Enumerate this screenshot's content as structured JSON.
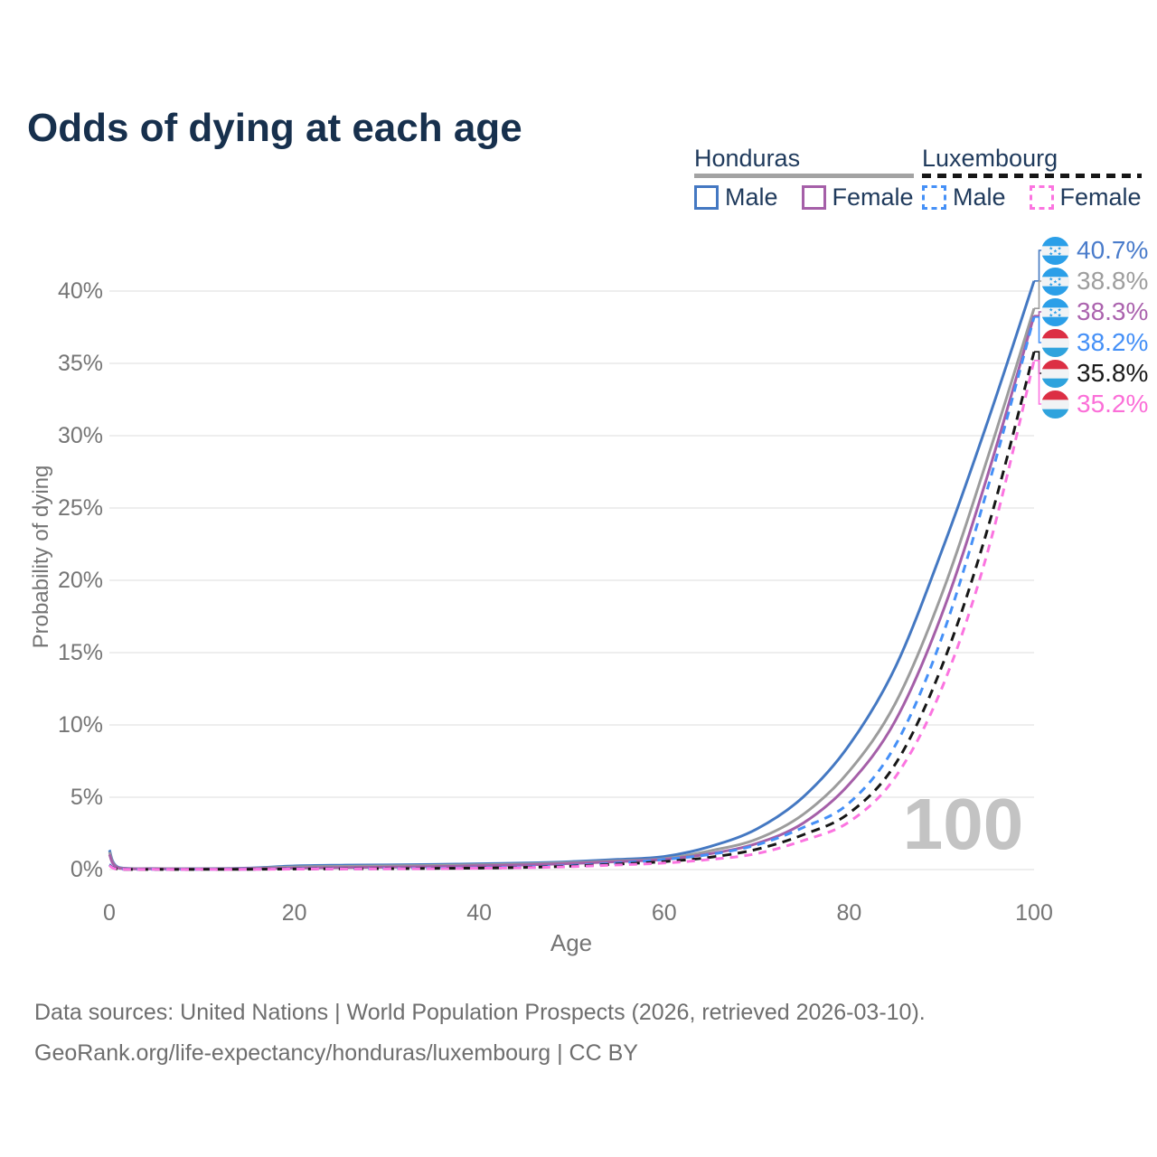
{
  "title": "Odds of dying at each age",
  "legend": {
    "groups": [
      {
        "id": "honduras",
        "label": "Honduras",
        "underline_style": "solid",
        "underline_color": "#a3a3a3",
        "items": [
          {
            "label": "Male",
            "color": "#4478c2",
            "style": "solid"
          },
          {
            "label": "Female",
            "color": "#a55fa8",
            "style": "solid"
          }
        ]
      },
      {
        "id": "luxembourg",
        "label": "Luxembourg",
        "underline_style": "dashed",
        "underline_color": "#161616",
        "items": [
          {
            "label": "Male",
            "color": "#4590f7",
            "style": "dashed"
          },
          {
            "label": "Female",
            "color": "#fb74e0",
            "style": "dashed"
          }
        ]
      }
    ]
  },
  "chart_data": {
    "type": "line",
    "title": "Odds of dying at each age",
    "xlabel": "Age",
    "ylabel": "Probability of dying",
    "xlim": [
      0,
      100
    ],
    "ylim": [
      0,
      43
    ],
    "grid": "horizontal",
    "legend_position": "top-right",
    "x_ticks": [
      {
        "value": 0,
        "label": "0"
      },
      {
        "value": 20,
        "label": "20"
      },
      {
        "value": 40,
        "label": "40"
      },
      {
        "value": 60,
        "label": "60"
      },
      {
        "value": 80,
        "label": "80"
      },
      {
        "value": 100,
        "label": "100"
      }
    ],
    "y_ticks": [
      {
        "value": 0,
        "label": "0%"
      },
      {
        "value": 5,
        "label": "5%"
      },
      {
        "value": 10,
        "label": "10%"
      },
      {
        "value": 15,
        "label": "15%"
      },
      {
        "value": 20,
        "label": "20%"
      },
      {
        "value": 25,
        "label": "25%"
      },
      {
        "value": 30,
        "label": "30%"
      },
      {
        "value": 35,
        "label": "35%"
      },
      {
        "value": 40,
        "label": "40%"
      }
    ],
    "ages": [
      0,
      1,
      5,
      10,
      15,
      20,
      25,
      30,
      35,
      40,
      45,
      50,
      55,
      60,
      65,
      70,
      75,
      80,
      85,
      90,
      95,
      100
    ],
    "unit": "percent probability of dying at each age",
    "series": [
      {
        "id": "honduras-male",
        "name": "Honduras Male",
        "color": "#4478c2",
        "dash": null,
        "end_label": "40.7%",
        "end_label_color": "#4a7ccb",
        "flag": "honduras",
        "values": [
          1.35,
          0.15,
          0.07,
          0.06,
          0.1,
          0.25,
          0.3,
          0.32,
          0.35,
          0.4,
          0.45,
          0.55,
          0.7,
          0.9,
          1.6,
          2.8,
          5.0,
          8.6,
          14.0,
          22.0,
          31.0,
          40.7
        ]
      },
      {
        "id": "honduras-both",
        "name": "Honduras Both sexes",
        "color": "#9c9c9c",
        "dash": null,
        "end_label": "38.8%",
        "end_label_color": "#9e9e9e",
        "flag": "honduras",
        "values": [
          1.2,
          0.12,
          0.06,
          0.05,
          0.08,
          0.18,
          0.22,
          0.25,
          0.28,
          0.33,
          0.38,
          0.48,
          0.6,
          0.75,
          1.3,
          2.1,
          3.8,
          6.8,
          11.5,
          19.0,
          28.5,
          38.8
        ]
      },
      {
        "id": "honduras-female",
        "name": "Honduras Female",
        "color": "#a55fa8",
        "dash": null,
        "end_label": "38.3%",
        "end_label_color": "#ab63ae",
        "flag": "honduras",
        "values": [
          1.05,
          0.1,
          0.05,
          0.04,
          0.06,
          0.1,
          0.13,
          0.16,
          0.2,
          0.26,
          0.32,
          0.42,
          0.55,
          0.7,
          1.1,
          1.8,
          3.2,
          5.9,
          10.3,
          17.6,
          27.3,
          38.3
        ]
      },
      {
        "id": "luxembourg-male",
        "name": "Luxembourg Male",
        "color": "#4590f7",
        "dash": "9 7",
        "end_label": "38.2%",
        "end_label_color": "#4590f7",
        "flag": "luxembourg",
        "values": [
          0.35,
          0.03,
          0.01,
          0.01,
          0.02,
          0.05,
          0.06,
          0.07,
          0.09,
          0.12,
          0.18,
          0.28,
          0.45,
          0.7,
          1.05,
          1.7,
          2.9,
          4.6,
          8.6,
          16.0,
          26.4,
          38.2
        ]
      },
      {
        "id": "luxembourg-both",
        "name": "Luxembourg Both sexes",
        "color": "#161616",
        "dash": "10 7",
        "end_label": "35.8%",
        "end_label_color": "#1a1a1a",
        "flag": "luxembourg",
        "values": [
          0.3,
          0.03,
          0.01,
          0.01,
          0.02,
          0.04,
          0.05,
          0.06,
          0.08,
          0.1,
          0.15,
          0.24,
          0.38,
          0.55,
          0.85,
          1.4,
          2.4,
          3.9,
          7.3,
          14.0,
          23.6,
          35.8
        ]
      },
      {
        "id": "luxembourg-female",
        "name": "Luxembourg Female",
        "color": "#fb74e0",
        "dash": "9 7",
        "end_label": "35.2%",
        "end_label_color": "#fb6fd8",
        "flag": "luxembourg",
        "values": [
          0.28,
          0.02,
          0.01,
          0.01,
          0.01,
          0.03,
          0.04,
          0.05,
          0.06,
          0.09,
          0.13,
          0.2,
          0.32,
          0.45,
          0.7,
          1.1,
          2.0,
          3.3,
          6.4,
          12.5,
          22.0,
          35.2
        ]
      }
    ],
    "watermark": "100"
  },
  "flags": {
    "honduras": {
      "band": "#2b9fe8",
      "white": "#f1f3f5",
      "star": "#2b9fe8"
    },
    "luxembourg": {
      "red": "#dc2f44",
      "white": "#f1f3f5",
      "blue": "#2fa3dd"
    }
  },
  "footer": {
    "line1": "Data sources: United Nations | World Population Prospects (2026, retrieved 2026-03-10).",
    "line2": "GeoRank.org/life-expectancy/honduras/luxembourg | CC BY"
  }
}
